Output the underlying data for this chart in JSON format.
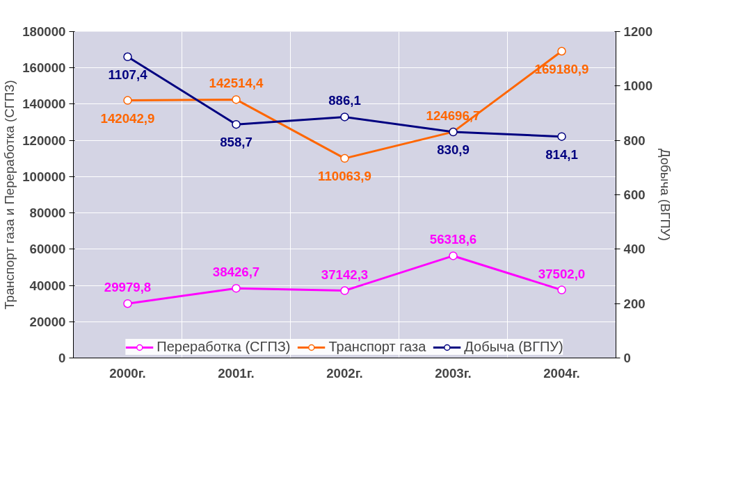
{
  "chart_data": {
    "type": "line",
    "categories": [
      "2000г.",
      "2001г.",
      "2002г.",
      "2003г.",
      "2004г."
    ],
    "ylabel": "Транспорт газа и Переработка (СГПЗ)",
    "y2label": "Добыча (ВГПУ)",
    "ylim": [
      0,
      180000
    ],
    "yticks": [
      0,
      20000,
      40000,
      60000,
      80000,
      100000,
      120000,
      140000,
      160000,
      180000
    ],
    "y2lim": [
      0,
      1200
    ],
    "y2ticks": [
      0,
      200,
      400,
      600,
      800,
      1000,
      1200
    ],
    "grid": true,
    "legend": "bottom",
    "marker": "circle",
    "line_style": "solid",
    "series": [
      {
        "name": "Переработка (СГПЗ)",
        "color": "#ff00ff",
        "values": [
          29979.8,
          38426.7,
          37142.3,
          56318.6,
          37502.0
        ],
        "value_labels": [
          "29979,8",
          "38426,7",
          "37142,3",
          "56318,6",
          "37502,0"
        ]
      },
      {
        "name": "Транспорт газа",
        "color": "#ff6600",
        "values": [
          142042.9,
          142514.4,
          110063.9,
          124696.7,
          169180.9
        ],
        "value_labels": [
          "142042,9",
          "142514,4",
          "110063,9",
          "124696,7",
          "169180,9"
        ]
      },
      {
        "name": "Добыча (ВГПУ)",
        "color": "#000080",
        "axis": "y2",
        "values": [
          1107.4,
          858.7,
          886.1,
          830.9,
          814.1
        ],
        "value_labels": [
          "1107,4",
          "858,7",
          "886,1",
          "830,9",
          "814,1"
        ]
      }
    ]
  }
}
